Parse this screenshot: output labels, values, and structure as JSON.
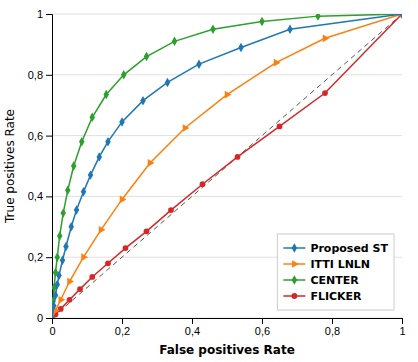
{
  "chart_data": {
    "type": "line",
    "xlabel": "False positives Rate",
    "ylabel": "True positives Rate",
    "xlim": [
      0,
      1
    ],
    "ylim": [
      0,
      1
    ],
    "xticks": [
      0,
      {
        "value": 0.2,
        "label": "0,2"
      },
      {
        "value": 0.4,
        "label": "0,4"
      },
      {
        "value": 0.6,
        "label": "0,6"
      },
      {
        "value": 0.8,
        "label": "0,8"
      },
      1
    ],
    "yticks": [
      0,
      {
        "value": 0.2,
        "label": "0,2"
      },
      {
        "value": 0.4,
        "label": "0,4"
      },
      {
        "value": 0.6,
        "label": "0,6"
      },
      {
        "value": 0.8,
        "label": "0,8"
      },
      1
    ],
    "grid": "y",
    "legend": "lower right",
    "series": [
      {
        "name": "Proposed ST",
        "marker": "diamond",
        "line_style": "solid",
        "x": [
          0,
          0.005,
          0.01,
          0.015,
          0.02,
          0.03,
          0.04,
          0.055,
          0.07,
          0.09,
          0.11,
          0.135,
          0.16,
          0.2,
          0.26,
          0.33,
          0.42,
          0.54,
          0.68,
          1.0
        ],
        "values": [
          0,
          0.04,
          0.075,
          0.11,
          0.14,
          0.19,
          0.235,
          0.3,
          0.355,
          0.415,
          0.47,
          0.53,
          0.58,
          0.645,
          0.715,
          0.775,
          0.835,
          0.89,
          0.95,
          1.0
        ]
      },
      {
        "name": "ITTI LNLN",
        "marker": "triangle-right",
        "line_style": "solid",
        "x": [
          0,
          0.01,
          0.025,
          0.05,
          0.09,
          0.14,
          0.2,
          0.28,
          0.38,
          0.5,
          0.64,
          0.78,
          1.0
        ],
        "values": [
          0,
          0.025,
          0.06,
          0.12,
          0.2,
          0.29,
          0.39,
          0.51,
          0.625,
          0.735,
          0.84,
          0.92,
          1.0
        ]
      },
      {
        "name": "CENTER",
        "marker": "diamond",
        "line_style": "solid",
        "x": [
          0,
          0.003,
          0.006,
          0.01,
          0.015,
          0.022,
          0.032,
          0.045,
          0.062,
          0.085,
          0.115,
          0.155,
          0.205,
          0.27,
          0.35,
          0.46,
          0.6,
          0.76,
          1.0
        ],
        "values": [
          0,
          0.055,
          0.1,
          0.15,
          0.2,
          0.27,
          0.345,
          0.42,
          0.5,
          0.58,
          0.66,
          0.735,
          0.8,
          0.86,
          0.91,
          0.95,
          0.975,
          0.993,
          1.0
        ]
      },
      {
        "name": "FLICKER",
        "marker": "circle",
        "line_style": "solid",
        "x": [
          0,
          0.01,
          0.025,
          0.05,
          0.08,
          0.115,
          0.16,
          0.21,
          0.27,
          0.34,
          0.43,
          0.53,
          0.65,
          0.78,
          1.0
        ],
        "values": [
          0,
          0.012,
          0.03,
          0.06,
          0.095,
          0.135,
          0.18,
          0.23,
          0.285,
          0.355,
          0.44,
          0.53,
          0.63,
          0.74,
          1.0
        ]
      },
      {
        "marker": "none",
        "line_style": "dashed",
        "x": [
          0,
          1
        ],
        "values": [
          0,
          1
        ]
      }
    ]
  }
}
